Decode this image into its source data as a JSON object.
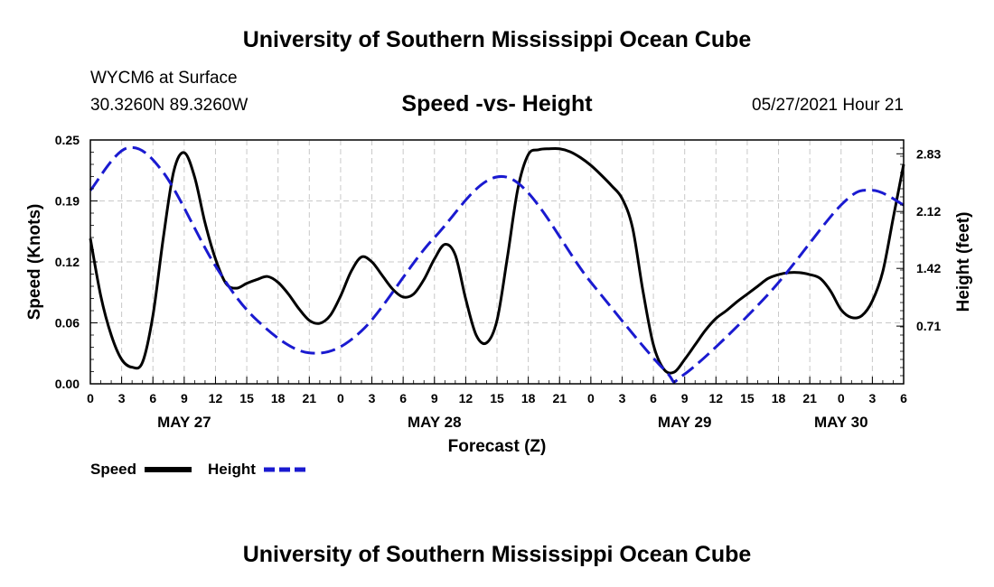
{
  "header": {
    "title": "University of Southern Mississippi Ocean Cube",
    "station": "WYCM6 at Surface",
    "coords": "30.3260N  89.3260W",
    "subtitle": "Speed -vs- Height",
    "datetime": "05/27/2021 Hour 21"
  },
  "footer": {
    "title": "University of Southern Mississippi Ocean Cube"
  },
  "legend": {
    "speed_label": "Speed",
    "height_label": "Height"
  },
  "colors": {
    "speed": "#000000",
    "height": "#1a1ad0",
    "grid": "#c8c8c8"
  },
  "chart_data": {
    "type": "line",
    "title": "Speed -vs- Height",
    "xlabel": "Forecast (Z)",
    "ylabel": "Speed (Knots)",
    "ylabel_right": "Height (feet)",
    "x_unit": "hours since May 27 00Z",
    "xlim": [
      0,
      78
    ],
    "ylim": [
      0,
      0.25
    ],
    "ylim_right": [
      0,
      3.0
    ],
    "yticks": [
      "0.00",
      "0.06",
      "0.12",
      "0.19",
      "0.25"
    ],
    "yticks_values": [
      0,
      0.0625,
      0.125,
      0.1875,
      0.25
    ],
    "yticks_right": [
      "0.71",
      "1.42",
      "2.12",
      "2.83"
    ],
    "yticks_right_values": [
      0.71,
      1.42,
      2.12,
      2.83
    ],
    "xticks": [
      "0",
      "3",
      "6",
      "9",
      "12",
      "15",
      "18",
      "21",
      "0",
      "3",
      "6",
      "9",
      "12",
      "15",
      "18",
      "21",
      "0",
      "3",
      "6",
      "9",
      "12",
      "15",
      "18",
      "21",
      "0",
      "3",
      "6"
    ],
    "xticks_values": [
      0,
      3,
      6,
      9,
      12,
      15,
      18,
      21,
      24,
      27,
      30,
      33,
      36,
      39,
      42,
      45,
      48,
      51,
      54,
      57,
      60,
      63,
      66,
      69,
      72,
      75,
      78
    ],
    "date_labels": [
      {
        "label": "MAY 27",
        "hour": 9
      },
      {
        "label": "MAY 28",
        "hour": 33
      },
      {
        "label": "MAY 29",
        "hour": 57
      },
      {
        "label": "MAY 30",
        "hour": 72
      }
    ],
    "series": [
      {
        "name": "Speed",
        "axis": "left",
        "style": "solid",
        "x": [
          0,
          1,
          2,
          3,
          4,
          5,
          6,
          7,
          8,
          9,
          10,
          11,
          12,
          13,
          14,
          15,
          16,
          17,
          18,
          19,
          20,
          21,
          22,
          23,
          24,
          25,
          26,
          27,
          28,
          29,
          30,
          31,
          32,
          33,
          34,
          35,
          36,
          37,
          38,
          39,
          40,
          41,
          42,
          43,
          44,
          45,
          46,
          47,
          48,
          49,
          50,
          51,
          52,
          53,
          54,
          55,
          56,
          57,
          58,
          59,
          60,
          61,
          62,
          63,
          64,
          65,
          66,
          67,
          68,
          69,
          70,
          71,
          72,
          73,
          74,
          75,
          76,
          77,
          78
        ],
        "values": [
          0.149,
          0.09,
          0.05,
          0.025,
          0.017,
          0.022,
          0.07,
          0.15,
          0.218,
          0.237,
          0.212,
          0.165,
          0.128,
          0.103,
          0.098,
          0.103,
          0.107,
          0.11,
          0.104,
          0.092,
          0.077,
          0.065,
          0.062,
          0.07,
          0.09,
          0.115,
          0.13,
          0.125,
          0.111,
          0.097,
          0.089,
          0.092,
          0.107,
          0.128,
          0.143,
          0.132,
          0.087,
          0.05,
          0.042,
          0.065,
          0.13,
          0.2,
          0.235,
          0.24,
          0.241,
          0.241,
          0.238,
          0.232,
          0.224,
          0.214,
          0.203,
          0.19,
          0.16,
          0.095,
          0.04,
          0.015,
          0.012,
          0.025,
          0.04,
          0.055,
          0.067,
          0.075,
          0.084,
          0.092,
          0.1,
          0.108,
          0.112,
          0.114,
          0.114,
          0.112,
          0.108,
          0.095,
          0.076,
          0.068,
          0.07,
          0.085,
          0.115,
          0.17,
          0.225
        ]
      },
      {
        "name": "Height",
        "axis": "right",
        "style": "dashed",
        "x": [
          0,
          3.5,
          7,
          12,
          16,
          21,
          26,
          33,
          40,
          48,
          55,
          57,
          65,
          72,
          75,
          78
        ],
        "values": [
          2.38,
          2.9,
          2.6,
          1.45,
          0.78,
          0.38,
          0.65,
          1.8,
          2.54,
          1.25,
          0.18,
          0.12,
          1.1,
          2.2,
          2.38,
          2.2
        ]
      }
    ]
  }
}
